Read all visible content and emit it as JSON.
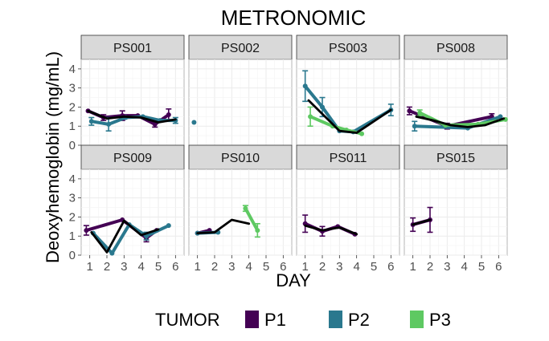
{
  "chart_data": {
    "type": "line",
    "title": "METRONOMIC",
    "xlabel": "DAY",
    "ylabel": "Deoxyhemoglobin (mg/mL)",
    "xlim": [
      0.5,
      6.5
    ],
    "ylim": [
      0,
      4.5
    ],
    "xticks": [
      1,
      2,
      3,
      4,
      5,
      6
    ],
    "yticks": [
      0,
      1,
      2,
      3,
      4
    ],
    "legend": {
      "title": "TUMOR",
      "position": "bottom",
      "entries": [
        "P1",
        "P2",
        "P3"
      ]
    },
    "series_colors": {
      "P1": "#440154",
      "P2": "#2a788e",
      "P3": "#5ec962",
      "mean": "#000000"
    },
    "panels": [
      {
        "name": "PS001",
        "series": [
          {
            "tumor": "P1",
            "points": [
              [
                0.9,
                1.8,
                0.1
              ],
              [
                1.8,
                1.45,
                0.15
              ],
              [
                2.9,
                1.55,
                0.25
              ],
              [
                3.8,
                1.55,
                0.1
              ],
              [
                4.8,
                1.1,
                0.15
              ],
              [
                5.6,
                1.6,
                0.3
              ]
            ]
          },
          {
            "tumor": "P2",
            "points": [
              [
                1.1,
                1.25,
                0.2
              ],
              [
                2.1,
                1.1,
                0.35
              ],
              [
                3.1,
                1.45,
                0.1
              ],
              [
                4.1,
                1.5,
                0.1
              ],
              [
                5.1,
                1.3,
                0.1
              ],
              [
                6.0,
                1.3,
                0.15
              ]
            ]
          }
        ],
        "mean": [
          [
            0.9,
            1.8
          ],
          [
            2.0,
            1.4
          ],
          [
            3.0,
            1.5
          ],
          [
            4.0,
            1.45
          ],
          [
            5.0,
            1.2
          ],
          [
            6.0,
            1.35
          ]
        ]
      },
      {
        "name": "PS002",
        "series": [
          {
            "tumor": "P2",
            "points": [
              [
                0.8,
                1.2,
                0.1
              ]
            ]
          }
        ],
        "mean": []
      },
      {
        "name": "PS003",
        "series": [
          {
            "tumor": "P2",
            "points": [
              [
                1.0,
                3.1,
                0.8
              ],
              [
                2.0,
                2.0,
                0.5
              ],
              [
                3.0,
                0.75,
                0.1
              ],
              [
                3.8,
                0.7,
                0.1
              ],
              [
                6.0,
                1.85,
                0.3
              ]
            ]
          },
          {
            "tumor": "P3",
            "points": [
              [
                1.3,
                1.5,
                0.5
              ],
              [
                2.6,
                1.0,
                0.1
              ],
              [
                3.4,
                0.8,
                0.1
              ],
              [
                4.3,
                0.6,
                0.05
              ]
            ]
          }
        ],
        "mean": [
          [
            1.2,
            2.35
          ],
          [
            3.0,
            0.75
          ],
          [
            4.0,
            0.65
          ],
          [
            6.0,
            1.85
          ]
        ]
      },
      {
        "name": "PS008",
        "series": [
          {
            "tumor": "P1",
            "points": [
              [
                0.8,
                1.8,
                0.2
              ],
              [
                3.0,
                1.0,
                0.15
              ],
              [
                5.6,
                1.5,
                0.15
              ]
            ]
          },
          {
            "tumor": "P2",
            "points": [
              [
                1.1,
                1.0,
                0.25
              ],
              [
                4.2,
                0.9,
                0.1
              ],
              [
                6.1,
                1.5,
                0.1
              ]
            ]
          },
          {
            "tumor": "P3",
            "points": [
              [
                1.4,
                1.7,
                0.15
              ],
              [
                2.9,
                1.05,
                0.1
              ],
              [
                4.8,
                1.1,
                0.1
              ],
              [
                6.4,
                1.35,
                0.1
              ]
            ]
          }
        ],
        "mean": [
          [
            1.2,
            1.5
          ],
          [
            2.2,
            1.3
          ],
          [
            3.2,
            1.05
          ],
          [
            4.2,
            0.95
          ],
          [
            5.2,
            1.05
          ],
          [
            6.3,
            1.4
          ]
        ]
      },
      {
        "name": "PS009",
        "series": [
          {
            "tumor": "P1",
            "points": [
              [
                0.8,
                1.3,
                0.25
              ],
              [
                2.9,
                1.85,
                0.1
              ],
              [
                4.3,
                0.9,
                0.2
              ],
              [
                4.9,
                1.3,
                0.1
              ]
            ]
          },
          {
            "tumor": "P2",
            "points": [
              [
                1.2,
                1.15,
                0.1
              ],
              [
                2.3,
                0.1,
                0.05
              ],
              [
                3.3,
                1.6,
                0.1
              ],
              [
                4.3,
                1.0,
                0.2
              ],
              [
                5.6,
                1.55,
                0.1
              ]
            ]
          }
        ],
        "mean": [
          [
            1.1,
            1.2
          ],
          [
            2.0,
            0.15
          ],
          [
            3.0,
            1.8
          ],
          [
            4.0,
            1.05
          ],
          [
            5.0,
            1.35
          ]
        ]
      },
      {
        "name": "PS010",
        "series": [
          {
            "tumor": "P1",
            "points": [
              [
                1.0,
                1.15,
                0.1
              ],
              [
                1.7,
                1.3,
                0.1
              ]
            ]
          },
          {
            "tumor": "P2",
            "points": [
              [
                1.0,
                1.15,
                0.1
              ],
              [
                2.2,
                1.2,
                0.1
              ]
            ]
          },
          {
            "tumor": "P3",
            "points": [
              [
                3.8,
                2.45,
                0.15
              ],
              [
                4.5,
                1.3,
                0.35
              ]
            ]
          }
        ],
        "mean": [
          [
            1.0,
            1.15
          ],
          [
            2.0,
            1.2
          ],
          [
            3.0,
            1.85
          ],
          [
            4.0,
            1.65
          ]
        ]
      },
      {
        "name": "PS011",
        "series": [
          {
            "tumor": "P1",
            "points": [
              [
                1.0,
                1.65,
                0.45
              ],
              [
                2.0,
                1.25,
                0.25
              ],
              [
                2.9,
                1.5,
                0.1
              ],
              [
                3.9,
                1.1,
                0.1
              ]
            ]
          }
        ],
        "mean": [
          [
            1.0,
            1.55
          ],
          [
            2.0,
            1.3
          ],
          [
            3.0,
            1.45
          ],
          [
            4.0,
            1.1
          ]
        ]
      },
      {
        "name": "PS015",
        "series": [
          {
            "tumor": "P1",
            "points": [
              [
                1.0,
                1.6,
                0.35
              ],
              [
                2.0,
                1.85,
                0.65
              ]
            ]
          }
        ],
        "mean": [
          [
            1.0,
            1.6
          ],
          [
            2.0,
            1.85
          ]
        ]
      }
    ]
  }
}
